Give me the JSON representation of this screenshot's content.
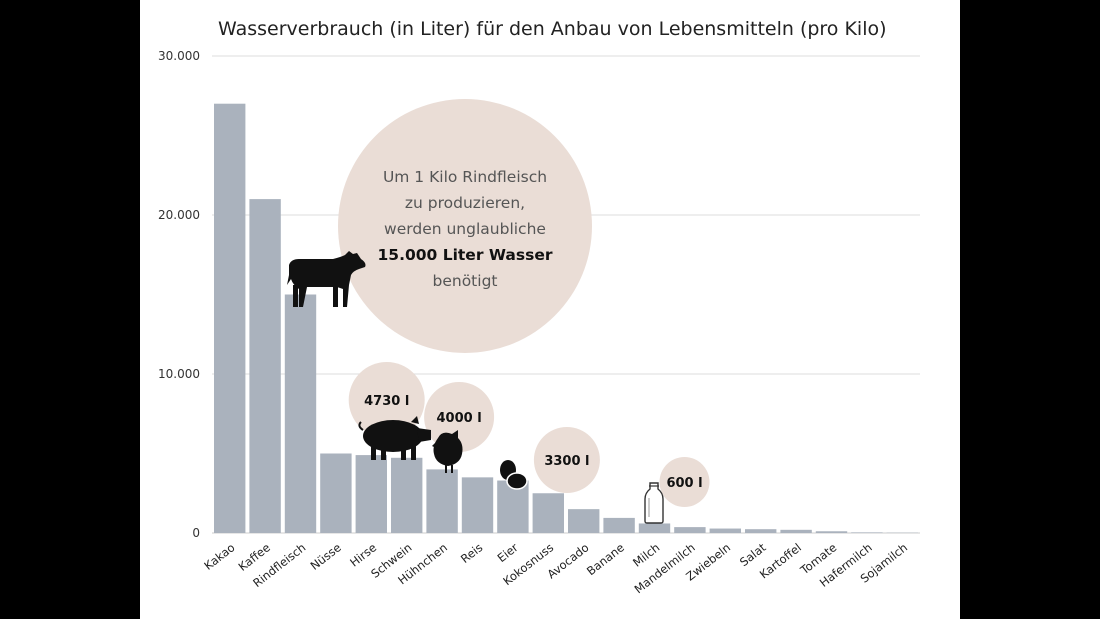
{
  "chart_data": {
    "type": "bar",
    "title": "Wasserverbrauch (in Liter) für den Anbau von Lebensmitteln (pro Kilo)",
    "xlabel": "",
    "ylabel": "",
    "ylim": [
      0,
      30000
    ],
    "yticks": [
      0,
      10000,
      20000,
      30000
    ],
    "ytick_labels": [
      "0",
      "10.000",
      "20.000",
      "30.000"
    ],
    "grid": true,
    "bar_color": "#aab2bd",
    "categories": [
      "Kakao",
      "Kaffee",
      "Rindfleisch",
      "Nüsse",
      "Hirse",
      "Schwein",
      "Hühnchen",
      "Reis",
      "Eier",
      "Kokosnuss",
      "Avocado",
      "Banane",
      "Milch",
      "Mandelmilch",
      "Zwiebeln",
      "Salat",
      "Kartoffel",
      "Tomate",
      "Hafermilch",
      "Sojamilch"
    ],
    "values": [
      27000,
      21000,
      15000,
      5000,
      4900,
      4730,
      4000,
      3500,
      3300,
      2500,
      1500,
      950,
      600,
      370,
      280,
      240,
      200,
      110,
      40,
      20
    ],
    "annotations": {
      "main_callout_lines": [
        "Um 1 Kilo Rindfleisch",
        "zu produzieren,",
        "werden unglaubliche"
      ],
      "main_callout_bold": "15.000 Liter Wasser",
      "main_callout_last": "benötigt",
      "bubbles": [
        {
          "category": "Schwein",
          "label": "4730 l"
        },
        {
          "category": "Hühnchen",
          "label": "4000 l"
        },
        {
          "category": "Eier",
          "label": "3300 l"
        },
        {
          "category": "Milch",
          "label": "600 l"
        }
      ],
      "bubble_color": "#eaddd6",
      "icons": [
        "cow-icon",
        "pig-icon",
        "chicken-icon",
        "eggs-icon",
        "milk-bottle-icon"
      ]
    }
  }
}
